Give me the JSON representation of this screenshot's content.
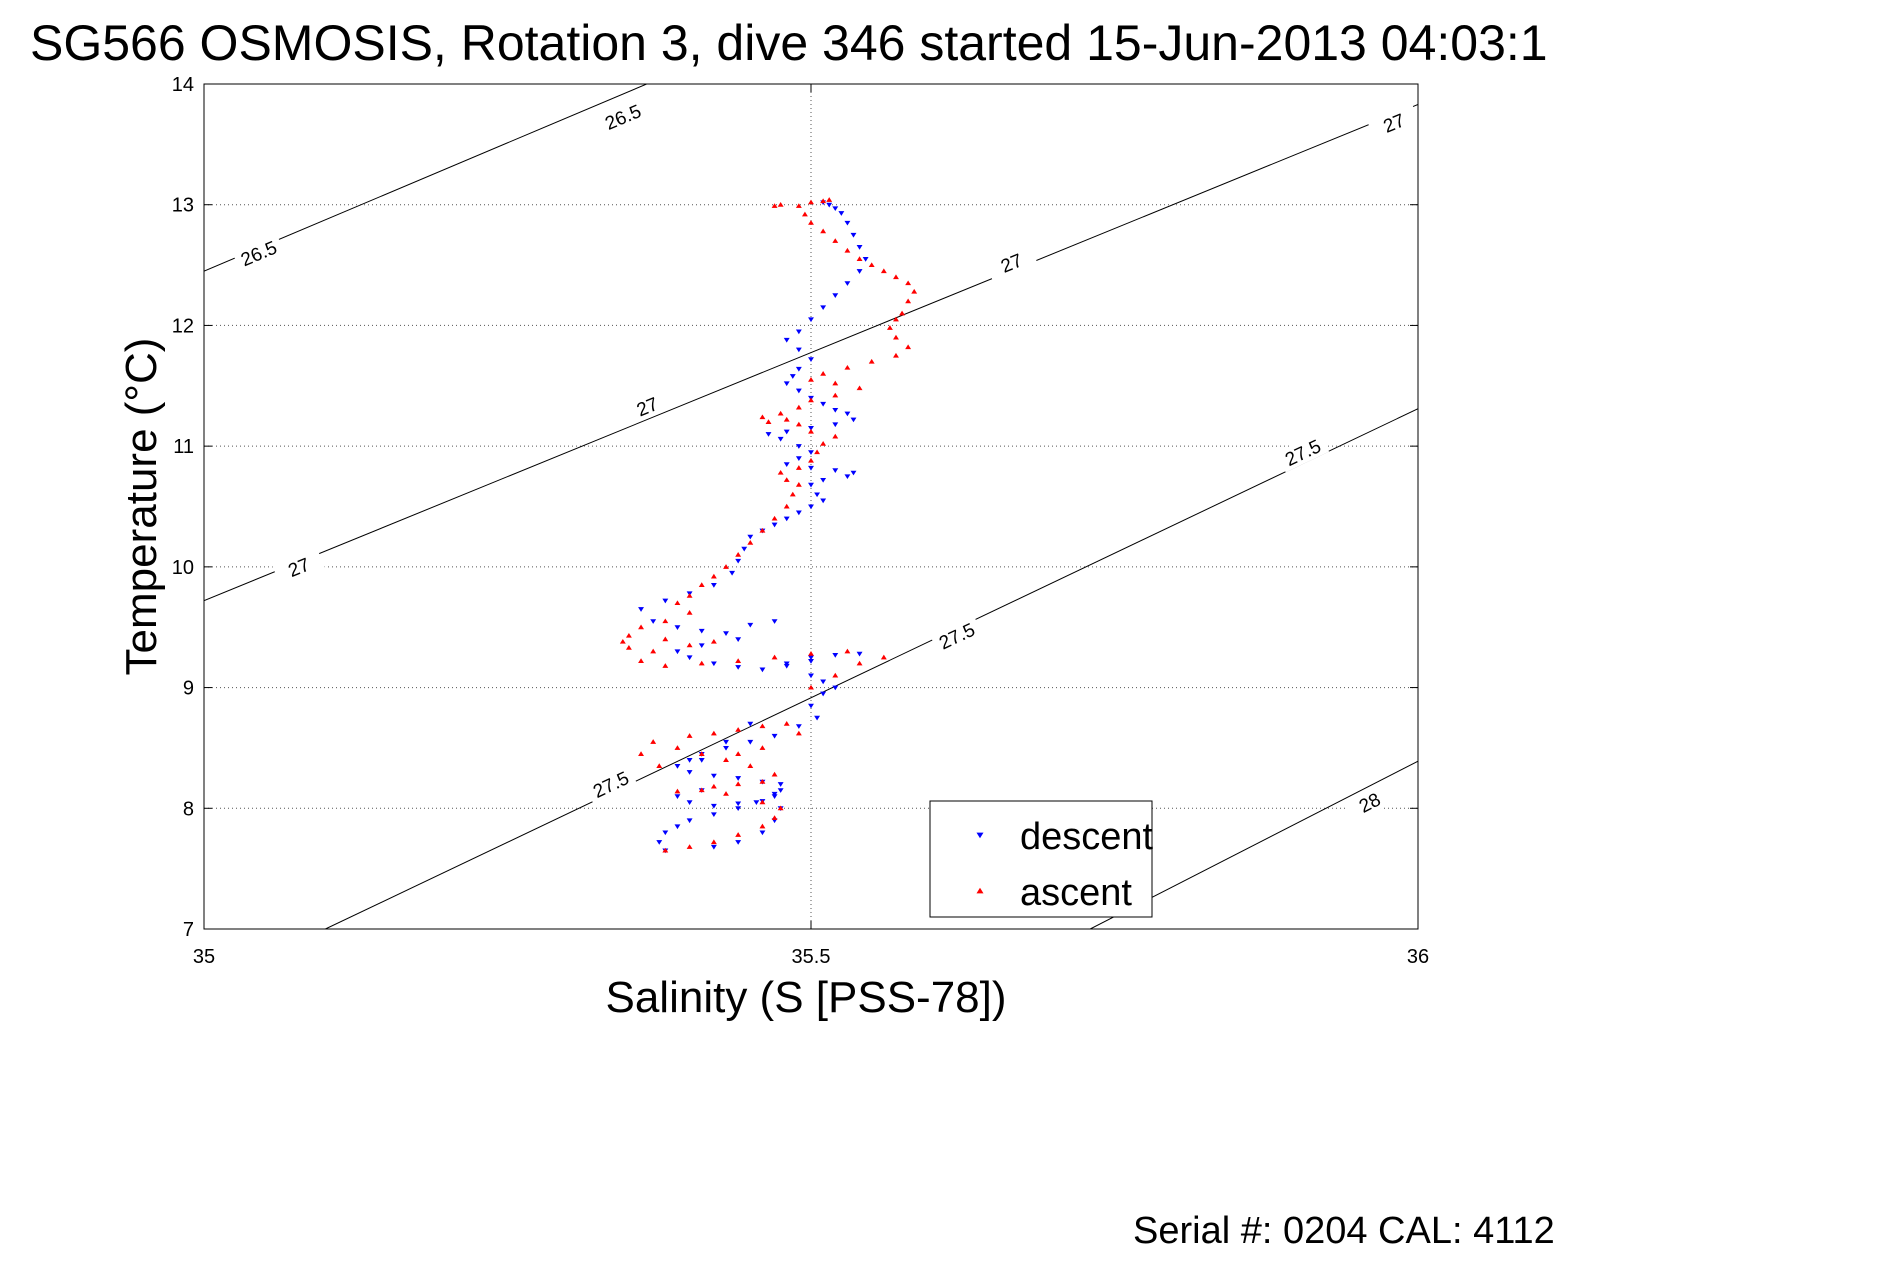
{
  "chart_data": {
    "type": "scatter",
    "title": "SG566 OSMOSIS, Rotation 3, dive 346 started 15-Jun-2013 04:03:1",
    "xlabel": "Salinity (S [PSS-78])",
    "ylabel": "Temperature (°C)",
    "footer": "Serial #: 0204  CAL: 4112",
    "xlim": [
      35,
      36
    ],
    "ylim": [
      7,
      14
    ],
    "xticks": [
      35,
      35.5,
      36
    ],
    "xtick_labels": [
      "35",
      "35.5",
      "36"
    ],
    "yticks": [
      7,
      8,
      9,
      10,
      11,
      12,
      13,
      14
    ],
    "ytick_labels": [
      "7",
      "8",
      "9",
      "10",
      "11",
      "12",
      "13",
      "14"
    ],
    "grid": true,
    "legend_position": "bottom-right",
    "density_contours": [
      {
        "level": "26.5",
        "points": [
          [
            35,
            12.45
          ],
          [
            35.4,
            14.15
          ]
        ],
        "label_positions": [
          [
            35.045,
            12.6
          ],
          [
            35.345,
            13.73
          ]
        ]
      },
      {
        "level": "27",
        "points": [
          [
            35,
            9.72
          ],
          [
            36,
            13.83
          ]
        ],
        "label_positions": [
          [
            35.078,
            10.0
          ],
          [
            35.365,
            11.33
          ],
          [
            35.665,
            12.52
          ],
          [
            35.98,
            13.68
          ]
        ]
      },
      {
        "level": "27.5",
        "points": [
          [
            35.1,
            7.0
          ],
          [
            36,
            11.31
          ]
        ],
        "label_positions": [
          [
            35.335,
            8.2
          ],
          [
            35.62,
            9.43
          ],
          [
            35.905,
            10.95
          ]
        ]
      },
      {
        "level": "28",
        "points": [
          [
            35.73,
            7.0
          ],
          [
            36,
            8.39
          ]
        ],
        "label_positions": [
          [
            35.96,
            8.05
          ]
        ]
      }
    ],
    "series": [
      {
        "name": "descent",
        "color": "#0000ff",
        "marker": "triangle-down",
        "points": [
          [
            35.51,
            13.02
          ],
          [
            35.515,
            13.0
          ],
          [
            35.52,
            12.97
          ],
          [
            35.525,
            12.93
          ],
          [
            35.53,
            12.85
          ],
          [
            35.535,
            12.75
          ],
          [
            35.54,
            12.65
          ],
          [
            35.545,
            12.55
          ],
          [
            35.54,
            12.45
          ],
          [
            35.53,
            12.35
          ],
          [
            35.52,
            12.25
          ],
          [
            35.51,
            12.15
          ],
          [
            35.5,
            12.05
          ],
          [
            35.49,
            11.95
          ],
          [
            35.48,
            11.88
          ],
          [
            35.49,
            11.8
          ],
          [
            35.5,
            11.72
          ],
          [
            35.49,
            11.64
          ],
          [
            35.485,
            11.58
          ],
          [
            35.48,
            11.52
          ],
          [
            35.49,
            11.46
          ],
          [
            35.5,
            11.4
          ],
          [
            35.51,
            11.35
          ],
          [
            35.52,
            11.3
          ],
          [
            35.53,
            11.27
          ],
          [
            35.535,
            11.22
          ],
          [
            35.52,
            11.18
          ],
          [
            35.5,
            11.15
          ],
          [
            35.48,
            11.12
          ],
          [
            35.465,
            11.1
          ],
          [
            35.475,
            11.06
          ],
          [
            35.49,
            11.0
          ],
          [
            35.5,
            10.95
          ],
          [
            35.49,
            10.9
          ],
          [
            35.48,
            10.85
          ],
          [
            35.5,
            10.82
          ],
          [
            35.52,
            10.8
          ],
          [
            35.535,
            10.78
          ],
          [
            35.53,
            10.75
          ],
          [
            35.51,
            10.72
          ],
          [
            35.5,
            10.68
          ],
          [
            35.505,
            10.6
          ],
          [
            35.51,
            10.55
          ],
          [
            35.5,
            10.5
          ],
          [
            35.49,
            10.45
          ],
          [
            35.48,
            10.4
          ],
          [
            35.47,
            10.35
          ],
          [
            35.46,
            10.3
          ],
          [
            35.45,
            10.25
          ],
          [
            35.445,
            10.15
          ],
          [
            35.44,
            10.05
          ],
          [
            35.435,
            9.95
          ],
          [
            35.42,
            9.85
          ],
          [
            35.4,
            9.78
          ],
          [
            35.38,
            9.72
          ],
          [
            35.36,
            9.65
          ],
          [
            35.37,
            9.55
          ],
          [
            35.39,
            9.5
          ],
          [
            35.41,
            9.47
          ],
          [
            35.43,
            9.45
          ],
          [
            35.45,
            9.52
          ],
          [
            35.47,
            9.55
          ],
          [
            35.44,
            9.4
          ],
          [
            35.41,
            9.35
          ],
          [
            35.39,
            9.3
          ],
          [
            35.4,
            9.25
          ],
          [
            35.42,
            9.2
          ],
          [
            35.44,
            9.17
          ],
          [
            35.46,
            9.15
          ],
          [
            35.48,
            9.2
          ],
          [
            35.5,
            9.25
          ],
          [
            35.52,
            9.27
          ],
          [
            35.54,
            9.28
          ],
          [
            35.5,
            9.22
          ],
          [
            35.48,
            9.18
          ],
          [
            35.5,
            9.1
          ],
          [
            35.51,
            9.05
          ],
          [
            35.52,
            9.0
          ],
          [
            35.51,
            8.95
          ],
          [
            35.5,
            8.85
          ],
          [
            35.505,
            8.75
          ],
          [
            35.49,
            8.68
          ],
          [
            35.47,
            8.6
          ],
          [
            35.45,
            8.55
          ],
          [
            35.43,
            8.5
          ],
          [
            35.41,
            8.45
          ],
          [
            35.4,
            8.4
          ],
          [
            35.39,
            8.35
          ],
          [
            35.4,
            8.3
          ],
          [
            35.42,
            8.27
          ],
          [
            35.44,
            8.25
          ],
          [
            35.46,
            8.22
          ],
          [
            35.475,
            8.2
          ],
          [
            35.47,
            8.12
          ],
          [
            35.455,
            8.05
          ],
          [
            35.44,
            8.0
          ],
          [
            35.42,
            7.95
          ],
          [
            35.4,
            7.9
          ],
          [
            35.39,
            7.85
          ],
          [
            35.38,
            7.8
          ],
          [
            35.375,
            7.72
          ],
          [
            35.38,
            7.65
          ],
          [
            35.42,
            7.68
          ],
          [
            35.44,
            7.72
          ],
          [
            35.46,
            7.8
          ],
          [
            35.47,
            7.9
          ],
          [
            35.475,
            8.0
          ],
          [
            35.47,
            8.1
          ],
          [
            35.41,
            8.15
          ],
          [
            35.39,
            8.1
          ],
          [
            35.4,
            8.05
          ],
          [
            35.42,
            8.02
          ],
          [
            35.44,
            8.04
          ],
          [
            35.46,
            8.06
          ],
          [
            35.475,
            8.15
          ],
          [
            35.41,
            8.4
          ],
          [
            35.43,
            8.55
          ],
          [
            35.45,
            8.7
          ]
        ]
      },
      {
        "name": "ascent",
        "color": "#ff0000",
        "marker": "triangle-up",
        "points": [
          [
            35.38,
            7.65
          ],
          [
            35.4,
            7.68
          ],
          [
            35.42,
            7.72
          ],
          [
            35.44,
            7.78
          ],
          [
            35.46,
            7.85
          ],
          [
            35.47,
            7.92
          ],
          [
            35.475,
            8.0
          ],
          [
            35.46,
            8.05
          ],
          [
            35.43,
            8.12
          ],
          [
            35.41,
            8.15
          ],
          [
            35.39,
            8.14
          ],
          [
            35.42,
            8.18
          ],
          [
            35.44,
            8.2
          ],
          [
            35.46,
            8.22
          ],
          [
            35.47,
            8.28
          ],
          [
            35.45,
            8.35
          ],
          [
            35.43,
            8.4
          ],
          [
            35.41,
            8.45
          ],
          [
            35.39,
            8.5
          ],
          [
            35.37,
            8.55
          ],
          [
            35.36,
            8.45
          ],
          [
            35.375,
            8.35
          ],
          [
            35.4,
            8.6
          ],
          [
            35.42,
            8.62
          ],
          [
            35.44,
            8.65
          ],
          [
            35.46,
            8.68
          ],
          [
            35.48,
            8.7
          ],
          [
            35.49,
            8.62
          ],
          [
            35.44,
            8.45
          ],
          [
            35.46,
            8.5
          ],
          [
            35.5,
            9.0
          ],
          [
            35.52,
            9.1
          ],
          [
            35.54,
            9.2
          ],
          [
            35.56,
            9.25
          ],
          [
            35.53,
            9.3
          ],
          [
            35.5,
            9.28
          ],
          [
            35.47,
            9.25
          ],
          [
            35.44,
            9.22
          ],
          [
            35.41,
            9.2
          ],
          [
            35.38,
            9.18
          ],
          [
            35.36,
            9.22
          ],
          [
            35.37,
            9.3
          ],
          [
            35.4,
            9.35
          ],
          [
            35.42,
            9.38
          ],
          [
            35.38,
            9.4
          ],
          [
            35.35,
            9.43
          ],
          [
            35.345,
            9.38
          ],
          [
            35.35,
            9.33
          ],
          [
            35.36,
            9.5
          ],
          [
            35.38,
            9.55
          ],
          [
            35.4,
            9.62
          ],
          [
            35.39,
            9.7
          ],
          [
            35.4,
            9.76
          ],
          [
            35.41,
            9.85
          ],
          [
            35.42,
            9.92
          ],
          [
            35.43,
            10.0
          ],
          [
            35.44,
            10.1
          ],
          [
            35.45,
            10.2
          ],
          [
            35.46,
            10.3
          ],
          [
            35.47,
            10.4
          ],
          [
            35.48,
            10.5
          ],
          [
            35.485,
            10.6
          ],
          [
            35.49,
            10.68
          ],
          [
            35.48,
            10.72
          ],
          [
            35.475,
            10.78
          ],
          [
            35.49,
            10.82
          ],
          [
            35.5,
            10.88
          ],
          [
            35.505,
            10.95
          ],
          [
            35.51,
            11.02
          ],
          [
            35.52,
            11.08
          ],
          [
            35.5,
            11.12
          ],
          [
            35.49,
            11.18
          ],
          [
            35.48,
            11.22
          ],
          [
            35.46,
            11.24
          ],
          [
            35.465,
            11.2
          ],
          [
            35.475,
            11.27
          ],
          [
            35.49,
            11.32
          ],
          [
            35.5,
            11.38
          ],
          [
            35.52,
            11.42
          ],
          [
            35.54,
            11.48
          ],
          [
            35.52,
            11.52
          ],
          [
            35.5,
            11.55
          ],
          [
            35.51,
            11.6
          ],
          [
            35.53,
            11.65
          ],
          [
            35.55,
            11.7
          ],
          [
            35.57,
            11.75
          ],
          [
            35.58,
            11.82
          ],
          [
            35.57,
            11.9
          ],
          [
            35.565,
            11.98
          ],
          [
            35.57,
            12.05
          ],
          [
            35.575,
            12.1
          ],
          [
            35.58,
            12.2
          ],
          [
            35.585,
            12.28
          ],
          [
            35.58,
            12.35
          ],
          [
            35.57,
            12.4
          ],
          [
            35.56,
            12.45
          ],
          [
            35.55,
            12.5
          ],
          [
            35.54,
            12.55
          ],
          [
            35.53,
            12.62
          ],
          [
            35.52,
            12.7
          ],
          [
            35.51,
            12.78
          ],
          [
            35.5,
            12.85
          ],
          [
            35.495,
            12.92
          ],
          [
            35.49,
            12.99
          ],
          [
            35.5,
            13.02
          ],
          [
            35.51,
            13.03
          ],
          [
            35.515,
            13.04
          ],
          [
            35.47,
            12.99
          ],
          [
            35.475,
            13.0
          ]
        ]
      }
    ]
  },
  "legend": {
    "items": [
      {
        "label": "descent",
        "color": "#0000ff",
        "marker": "triangle-down"
      },
      {
        "label": "ascent",
        "color": "#ff0000",
        "marker": "triangle-up"
      }
    ]
  }
}
